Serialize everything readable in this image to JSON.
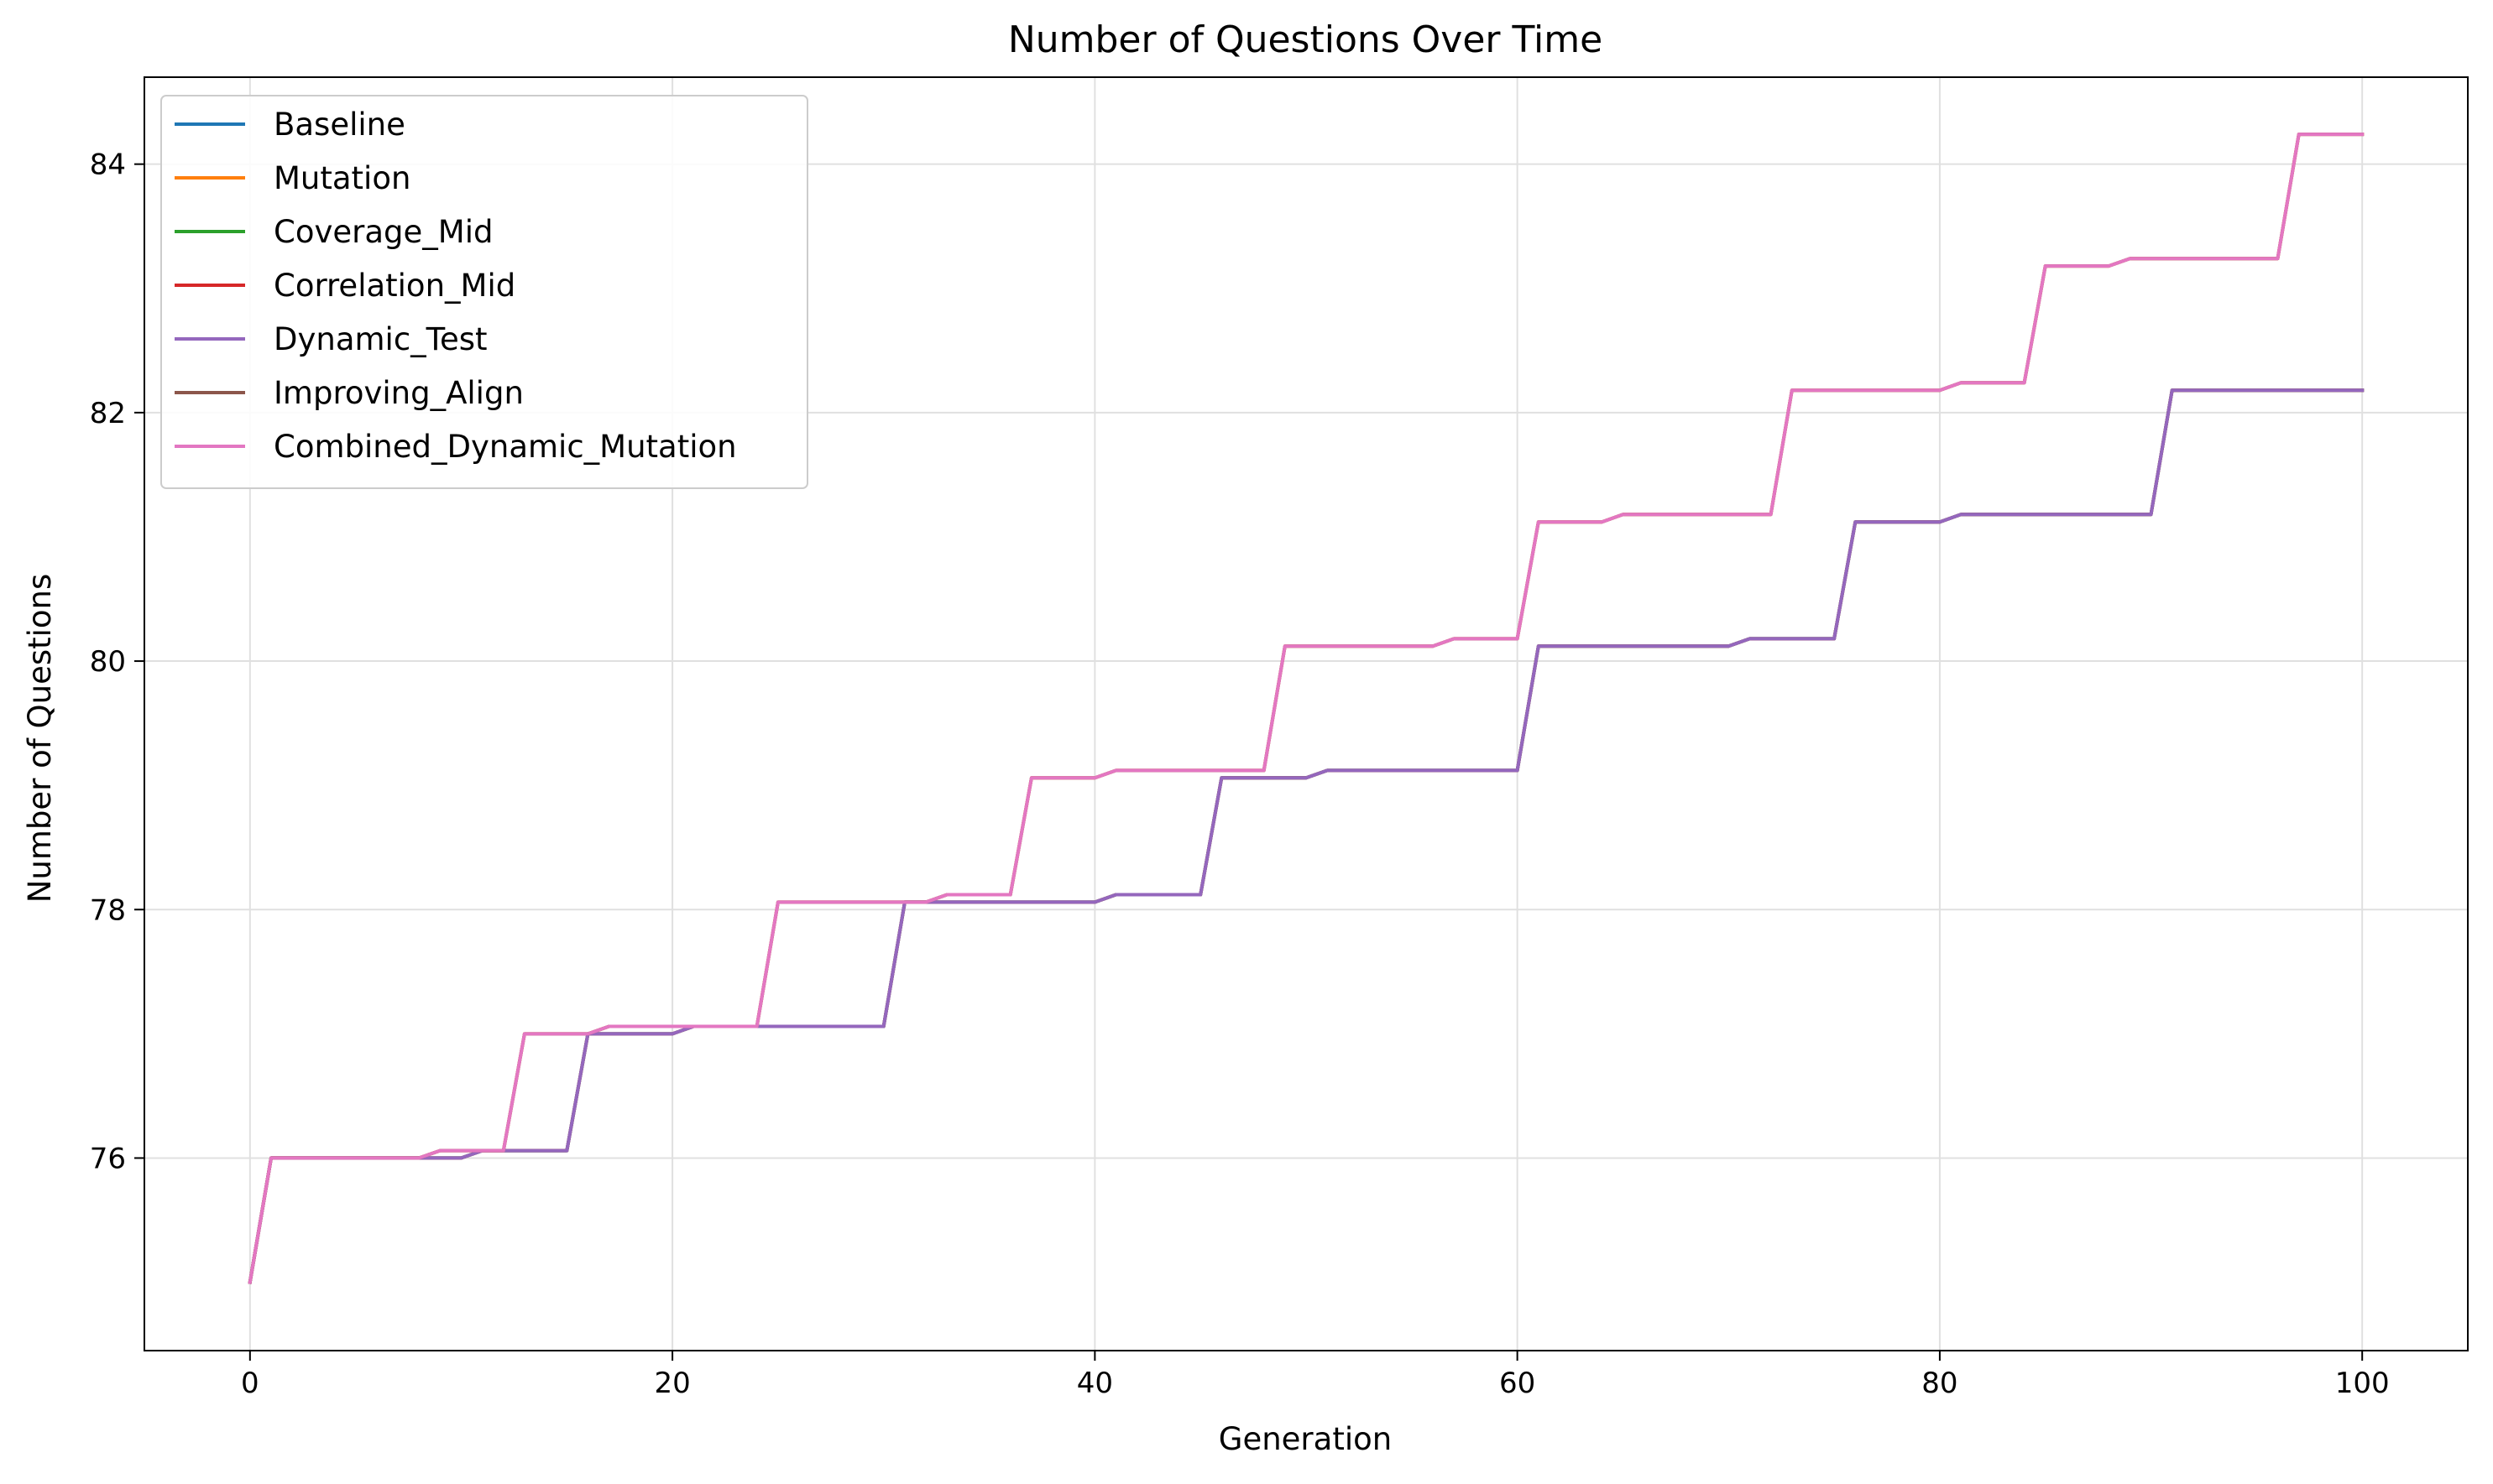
{
  "chart_data": {
    "type": "line",
    "title": "Number of Questions Over Time",
    "xlabel": "Generation",
    "ylabel": "Number of Questions",
    "xlim": [
      -5,
      105
    ],
    "ylim": [
      74.45,
      84.7
    ],
    "xticks": [
      0,
      20,
      40,
      60,
      80,
      100
    ],
    "yticks": [
      76,
      78,
      80,
      82,
      84
    ],
    "grid": true,
    "legend_position": "top-left",
    "series": [
      {
        "name": "Baseline",
        "color": "#1f77b4",
        "steps": [
          [
            0,
            75
          ],
          [
            1,
            76
          ],
          [
            10,
            76
          ],
          [
            11,
            76.06
          ],
          [
            15,
            76.06
          ],
          [
            16,
            77
          ],
          [
            20,
            77
          ],
          [
            21,
            77.06
          ],
          [
            30,
            77.06
          ],
          [
            31,
            78.06
          ],
          [
            40,
            78.06
          ],
          [
            41,
            78.12
          ],
          [
            45,
            78.12
          ],
          [
            46,
            79.06
          ],
          [
            50,
            79.06
          ],
          [
            51,
            79.12
          ],
          [
            60,
            79.12
          ],
          [
            61,
            80.12
          ],
          [
            70,
            80.12
          ],
          [
            71,
            80.18
          ],
          [
            75,
            80.18
          ],
          [
            76,
            81.12
          ],
          [
            80,
            81.12
          ],
          [
            81,
            81.18
          ],
          [
            90,
            81.18
          ],
          [
            91,
            82.18
          ],
          [
            100,
            82.18
          ]
        ]
      },
      {
        "name": "Mutation",
        "color": "#ff7f0e",
        "steps": [
          [
            0,
            75
          ],
          [
            1,
            76
          ],
          [
            8,
            76
          ],
          [
            9,
            76.06
          ],
          [
            12,
            76.06
          ],
          [
            13,
            77
          ],
          [
            16,
            77
          ],
          [
            17,
            77.06
          ],
          [
            24,
            77.06
          ],
          [
            25,
            78.06
          ],
          [
            32,
            78.06
          ],
          [
            33,
            78.12
          ],
          [
            36,
            78.12
          ],
          [
            37,
            79.06
          ],
          [
            40,
            79.06
          ],
          [
            41,
            79.12
          ],
          [
            48,
            79.12
          ],
          [
            49,
            80.12
          ],
          [
            56,
            80.12
          ],
          [
            57,
            80.18
          ],
          [
            60,
            80.18
          ],
          [
            61,
            81.12
          ],
          [
            64,
            81.12
          ],
          [
            65,
            81.18
          ],
          [
            72,
            81.18
          ],
          [
            73,
            82.18
          ],
          [
            80,
            82.18
          ],
          [
            81,
            82.24
          ],
          [
            84,
            82.24
          ],
          [
            85,
            83.18
          ],
          [
            88,
            83.18
          ],
          [
            89,
            83.24
          ],
          [
            96,
            83.24
          ],
          [
            97,
            84.24
          ],
          [
            100,
            84.24
          ]
        ]
      },
      {
        "name": "Coverage_Mid",
        "color": "#2ca02c",
        "steps": [
          [
            0,
            75
          ],
          [
            1,
            76
          ],
          [
            10,
            76
          ],
          [
            11,
            76.06
          ],
          [
            15,
            76.06
          ],
          [
            16,
            77
          ],
          [
            20,
            77
          ],
          [
            21,
            77.06
          ],
          [
            30,
            77.06
          ],
          [
            31,
            78.06
          ],
          [
            40,
            78.06
          ],
          [
            41,
            78.12
          ],
          [
            45,
            78.12
          ],
          [
            46,
            79.06
          ],
          [
            50,
            79.06
          ],
          [
            51,
            79.12
          ],
          [
            60,
            79.12
          ],
          [
            61,
            80.12
          ],
          [
            70,
            80.12
          ],
          [
            71,
            80.18
          ],
          [
            75,
            80.18
          ],
          [
            76,
            81.12
          ],
          [
            80,
            81.12
          ],
          [
            81,
            81.18
          ],
          [
            90,
            81.18
          ],
          [
            91,
            82.18
          ],
          [
            100,
            82.18
          ]
        ]
      },
      {
        "name": "Correlation_Mid",
        "color": "#d62728",
        "steps": [
          [
            0,
            75
          ],
          [
            1,
            76
          ],
          [
            10,
            76
          ],
          [
            11,
            76.06
          ],
          [
            15,
            76.06
          ],
          [
            16,
            77
          ],
          [
            20,
            77
          ],
          [
            21,
            77.06
          ],
          [
            30,
            77.06
          ],
          [
            31,
            78.06
          ],
          [
            40,
            78.06
          ],
          [
            41,
            78.12
          ],
          [
            45,
            78.12
          ],
          [
            46,
            79.06
          ],
          [
            50,
            79.06
          ],
          [
            51,
            79.12
          ],
          [
            60,
            79.12
          ],
          [
            61,
            80.12
          ],
          [
            70,
            80.12
          ],
          [
            71,
            80.18
          ],
          [
            75,
            80.18
          ],
          [
            76,
            81.12
          ],
          [
            80,
            81.12
          ],
          [
            81,
            81.18
          ],
          [
            90,
            81.18
          ],
          [
            91,
            82.18
          ],
          [
            100,
            82.18
          ]
        ]
      },
      {
        "name": "Dynamic_Test",
        "color": "#9467bd",
        "steps": [
          [
            0,
            75
          ],
          [
            1,
            76
          ],
          [
            10,
            76
          ],
          [
            11,
            76.06
          ],
          [
            15,
            76.06
          ],
          [
            16,
            77
          ],
          [
            20,
            77
          ],
          [
            21,
            77.06
          ],
          [
            30,
            77.06
          ],
          [
            31,
            78.06
          ],
          [
            40,
            78.06
          ],
          [
            41,
            78.12
          ],
          [
            45,
            78.12
          ],
          [
            46,
            79.06
          ],
          [
            50,
            79.06
          ],
          [
            51,
            79.12
          ],
          [
            60,
            79.12
          ],
          [
            61,
            80.12
          ],
          [
            70,
            80.12
          ],
          [
            71,
            80.18
          ],
          [
            75,
            80.18
          ],
          [
            76,
            81.12
          ],
          [
            80,
            81.12
          ],
          [
            81,
            81.18
          ],
          [
            90,
            81.18
          ],
          [
            91,
            82.18
          ],
          [
            100,
            82.18
          ]
        ]
      },
      {
        "name": "Improving_Align",
        "color": "#8c564b",
        "steps": [
          [
            0,
            75
          ],
          [
            1,
            76
          ],
          [
            8,
            76
          ],
          [
            9,
            76.06
          ],
          [
            12,
            76.06
          ],
          [
            13,
            77
          ],
          [
            16,
            77
          ],
          [
            17,
            77.06
          ],
          [
            24,
            77.06
          ],
          [
            25,
            78.06
          ],
          [
            32,
            78.06
          ],
          [
            33,
            78.12
          ],
          [
            36,
            78.12
          ],
          [
            37,
            79.06
          ],
          [
            40,
            79.06
          ],
          [
            41,
            79.12
          ],
          [
            48,
            79.12
          ],
          [
            49,
            80.12
          ],
          [
            56,
            80.12
          ],
          [
            57,
            80.18
          ],
          [
            60,
            80.18
          ],
          [
            61,
            81.12
          ],
          [
            64,
            81.12
          ],
          [
            65,
            81.18
          ],
          [
            72,
            81.18
          ],
          [
            73,
            82.18
          ],
          [
            80,
            82.18
          ],
          [
            81,
            82.24
          ],
          [
            84,
            82.24
          ],
          [
            85,
            83.18
          ],
          [
            88,
            83.18
          ],
          [
            89,
            83.24
          ],
          [
            96,
            83.24
          ],
          [
            97,
            84.24
          ],
          [
            100,
            84.24
          ]
        ]
      },
      {
        "name": "Combined_Dynamic_Mutation",
        "color": "#e377c2",
        "steps": [
          [
            0,
            75
          ],
          [
            1,
            76
          ],
          [
            8,
            76
          ],
          [
            9,
            76.06
          ],
          [
            12,
            76.06
          ],
          [
            13,
            77
          ],
          [
            16,
            77
          ],
          [
            17,
            77.06
          ],
          [
            24,
            77.06
          ],
          [
            25,
            78.06
          ],
          [
            32,
            78.06
          ],
          [
            33,
            78.12
          ],
          [
            36,
            78.12
          ],
          [
            37,
            79.06
          ],
          [
            40,
            79.06
          ],
          [
            41,
            79.12
          ],
          [
            48,
            79.12
          ],
          [
            49,
            80.12
          ],
          [
            56,
            80.12
          ],
          [
            57,
            80.18
          ],
          [
            60,
            80.18
          ],
          [
            61,
            81.12
          ],
          [
            64,
            81.12
          ],
          [
            65,
            81.18
          ],
          [
            72,
            81.18
          ],
          [
            73,
            82.18
          ],
          [
            80,
            82.18
          ],
          [
            81,
            82.24
          ],
          [
            84,
            82.24
          ],
          [
            85,
            83.18
          ],
          [
            88,
            83.18
          ],
          [
            89,
            83.24
          ],
          [
            96,
            83.24
          ],
          [
            97,
            84.24
          ],
          [
            100,
            84.24
          ]
        ]
      }
    ]
  }
}
